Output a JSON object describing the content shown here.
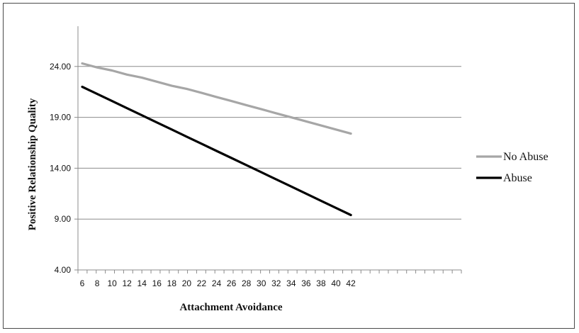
{
  "chart_data": {
    "type": "line",
    "title": "",
    "xlabel": "Attachment Avoidance",
    "ylabel": "Positive Relationship Quality",
    "x": [
      6,
      8,
      10,
      12,
      14,
      16,
      18,
      20,
      22,
      24,
      26,
      28,
      30,
      32,
      34,
      36,
      38,
      40,
      42
    ],
    "x_ticks": [
      6,
      8,
      10,
      12,
      14,
      16,
      18,
      20,
      22,
      24,
      26,
      28,
      30,
      32,
      34,
      36,
      38,
      40,
      42
    ],
    "x_tick_slots": 42,
    "y_ticks": [
      "4.00",
      "9.00",
      "14.00",
      "19.00",
      "24.00"
    ],
    "ylim": [
      4,
      29
    ],
    "grid": "horizontal",
    "legend_position": "right",
    "series": [
      {
        "name": "No Abuse",
        "color": "#a6a6a6",
        "values": [
          24.3,
          23.9,
          23.6,
          23.2,
          22.9,
          22.5,
          22.1,
          21.8,
          21.4,
          21.0,
          20.6,
          20.2,
          19.8,
          19.4,
          19.0,
          18.6,
          18.2,
          17.8,
          17.4
        ]
      },
      {
        "name": "Abuse",
        "color": "#000000",
        "values": [
          22.0,
          21.3,
          20.6,
          19.9,
          19.2,
          18.5,
          17.8,
          17.1,
          16.4,
          15.7,
          15.0,
          14.3,
          13.6,
          12.9,
          12.2,
          11.5,
          10.8,
          10.1,
          9.4
        ]
      }
    ]
  }
}
